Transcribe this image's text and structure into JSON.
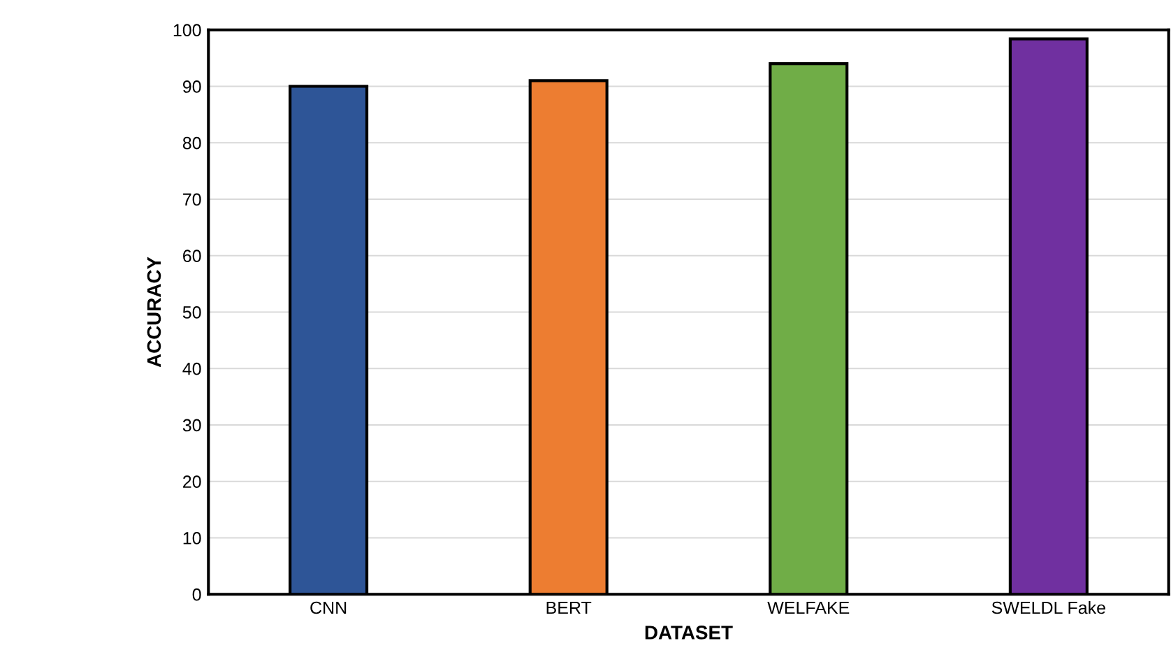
{
  "chart_data": {
    "type": "bar",
    "xlabel": "DATASET",
    "ylabel": "ACCURACY",
    "categories": [
      "CNN",
      "BERT",
      "WELFAKE",
      "SWELDL Fake"
    ],
    "values": [
      90,
      91,
      94,
      98.4
    ],
    "colors": [
      "#2e5597",
      "#ed7d31",
      "#70ad47",
      "#7030a0"
    ],
    "ylim": [
      0,
      100
    ],
    "yticks": [
      0,
      10,
      20,
      30,
      40,
      50,
      60,
      70,
      80,
      90,
      100
    ],
    "grid": "y"
  }
}
